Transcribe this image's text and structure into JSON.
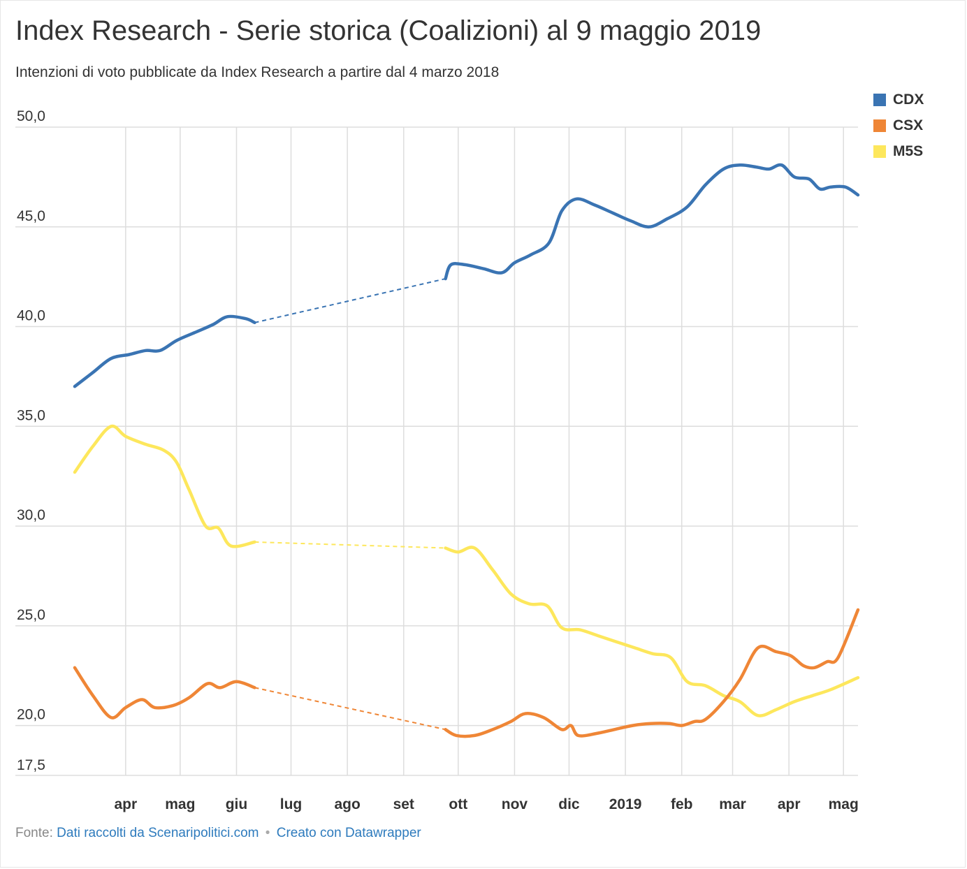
{
  "title": "Index Research - Serie storica (Coalizioni) al 9 maggio 2019",
  "subtitle": "Intenzioni di voto pubblicate da Index Research a partire dal 4 marzo 2018",
  "footer": {
    "prefix": "Fonte:",
    "source_link": "Dati raccolti da Scenaripolitici.com",
    "separator": "•",
    "made_with": "Creato con Datawrapper"
  },
  "colors": {
    "CDX": "#3a74b3",
    "CSX": "#ef8636",
    "M5S": "#fde75c",
    "grid": "#dddddd",
    "axis_text": "#333333"
  },
  "chart_data": {
    "type": "line",
    "title": "Index Research - Serie storica (Coalizioni) al 9 maggio 2019",
    "xlabel": "",
    "ylabel": "",
    "ylim": [
      17.5,
      50.0
    ],
    "y_ticks": [
      "50,0",
      "45,0",
      "40,0",
      "35,0",
      "30,0",
      "25,0",
      "20,0",
      "17,5"
    ],
    "y_tick_values": [
      50,
      45,
      40,
      35,
      30,
      25,
      20,
      17.5
    ],
    "x_range": [
      "2018-03-04",
      "2019-05-09"
    ],
    "x_ticks": [
      {
        "label": "apr",
        "date": "2018-04-01"
      },
      {
        "label": "mag",
        "date": "2018-05-01"
      },
      {
        "label": "giu",
        "date": "2018-06-01"
      },
      {
        "label": "lug",
        "date": "2018-07-01"
      },
      {
        "label": "ago",
        "date": "2018-08-01"
      },
      {
        "label": "set",
        "date": "2018-09-01"
      },
      {
        "label": "ott",
        "date": "2018-10-01"
      },
      {
        "label": "nov",
        "date": "2018-11-01"
      },
      {
        "label": "dic",
        "date": "2018-12-01"
      },
      {
        "label": "2019",
        "date": "2019-01-01"
      },
      {
        "label": "feb",
        "date": "2019-02-01"
      },
      {
        "label": "mar",
        "date": "2019-03-01"
      },
      {
        "label": "apr",
        "date": "2019-04-01"
      },
      {
        "label": "mag",
        "date": "2019-05-01"
      }
    ],
    "legend_position": "top-right",
    "grid": true,
    "gap_style": "dashed",
    "series": [
      {
        "name": "CDX",
        "segments": [
          [
            [
              "2018-03-04",
              37.0
            ],
            [
              "2018-03-14",
              37.7
            ],
            [
              "2018-03-24",
              38.4
            ],
            [
              "2018-04-03",
              38.6
            ],
            [
              "2018-04-12",
              38.8
            ],
            [
              "2018-04-20",
              38.8
            ],
            [
              "2018-04-29",
              39.3
            ],
            [
              "2018-05-09",
              39.7
            ],
            [
              "2018-05-19",
              40.1
            ],
            [
              "2018-05-27",
              40.5
            ],
            [
              "2018-06-06",
              40.4
            ],
            [
              "2018-06-11",
              40.2
            ]
          ],
          [
            [
              "2018-09-24",
              42.4
            ],
            [
              "2018-09-27",
              43.1
            ],
            [
              "2018-10-05",
              43.1
            ],
            [
              "2018-10-15",
              42.9
            ],
            [
              "2018-10-25",
              42.7
            ],
            [
              "2018-11-01",
              43.2
            ],
            [
              "2018-11-10",
              43.6
            ],
            [
              "2018-11-20",
              44.2
            ],
            [
              "2018-11-27",
              45.8
            ],
            [
              "2018-12-05",
              46.4
            ],
            [
              "2018-12-15",
              46.1
            ],
            [
              "2018-12-25",
              45.7
            ],
            [
              "2019-01-04",
              45.3
            ],
            [
              "2019-01-14",
              45.0
            ],
            [
              "2019-01-24",
              45.4
            ],
            [
              "2019-02-04",
              46.0
            ],
            [
              "2019-02-14",
              47.1
            ],
            [
              "2019-02-24",
              47.9
            ],
            [
              "2019-03-05",
              48.1
            ],
            [
              "2019-03-14",
              48.0
            ],
            [
              "2019-03-21",
              47.9
            ],
            [
              "2019-03-28",
              48.1
            ],
            [
              "2019-04-04",
              47.5
            ],
            [
              "2019-04-12",
              47.4
            ],
            [
              "2019-04-18",
              46.9
            ],
            [
              "2019-04-24",
              47.0
            ],
            [
              "2019-05-02",
              47.0
            ],
            [
              "2019-05-09",
              46.6
            ]
          ]
        ]
      },
      {
        "name": "CSX",
        "segments": [
          [
            [
              "2018-03-04",
              22.9
            ],
            [
              "2018-03-14",
              21.5
            ],
            [
              "2018-03-24",
              20.4
            ],
            [
              "2018-04-01",
              20.9
            ],
            [
              "2018-04-10",
              21.3
            ],
            [
              "2018-04-17",
              20.9
            ],
            [
              "2018-04-27",
              21.0
            ],
            [
              "2018-05-06",
              21.4
            ],
            [
              "2018-05-16",
              22.1
            ],
            [
              "2018-05-23",
              21.9
            ],
            [
              "2018-06-01",
              22.2
            ],
            [
              "2018-06-11",
              21.9
            ]
          ],
          [
            [
              "2018-09-24",
              19.8
            ],
            [
              "2018-09-30",
              19.5
            ],
            [
              "2018-10-10",
              19.5
            ],
            [
              "2018-10-20",
              19.8
            ],
            [
              "2018-10-30",
              20.2
            ],
            [
              "2018-11-07",
              20.6
            ],
            [
              "2018-11-17",
              20.4
            ],
            [
              "2018-11-27",
              19.8
            ],
            [
              "2018-12-02",
              20.0
            ],
            [
              "2018-12-06",
              19.5
            ],
            [
              "2018-12-16",
              19.6
            ],
            [
              "2018-12-26",
              19.8
            ],
            [
              "2019-01-05",
              20.0
            ],
            [
              "2019-01-15",
              20.1
            ],
            [
              "2019-01-25",
              20.1
            ],
            [
              "2019-02-01",
              20.0
            ],
            [
              "2019-02-08",
              20.2
            ],
            [
              "2019-02-14",
              20.3
            ],
            [
              "2019-02-24",
              21.2
            ],
            [
              "2019-03-05",
              22.3
            ],
            [
              "2019-03-15",
              23.9
            ],
            [
              "2019-03-25",
              23.7
            ],
            [
              "2019-04-02",
              23.5
            ],
            [
              "2019-04-09",
              23.0
            ],
            [
              "2019-04-15",
              22.9
            ],
            [
              "2019-04-22",
              23.2
            ],
            [
              "2019-04-28",
              23.4
            ],
            [
              "2019-05-09",
              25.8
            ]
          ]
        ]
      },
      {
        "name": "M5S",
        "segments": [
          [
            [
              "2018-03-04",
              32.7
            ],
            [
              "2018-03-14",
              34.0
            ],
            [
              "2018-03-24",
              35.0
            ],
            [
              "2018-04-01",
              34.5
            ],
            [
              "2018-04-12",
              34.1
            ],
            [
              "2018-04-22",
              33.8
            ],
            [
              "2018-04-29",
              33.2
            ],
            [
              "2018-05-06",
              31.8
            ],
            [
              "2018-05-15",
              30.0
            ],
            [
              "2018-05-22",
              29.9
            ],
            [
              "2018-05-29",
              29.0
            ],
            [
              "2018-06-11",
              29.2
            ]
          ],
          [
            [
              "2018-09-24",
              28.9
            ],
            [
              "2018-10-01",
              28.7
            ],
            [
              "2018-10-10",
              28.9
            ],
            [
              "2018-10-20",
              27.8
            ],
            [
              "2018-10-30",
              26.6
            ],
            [
              "2018-11-09",
              26.1
            ],
            [
              "2018-11-19",
              26.0
            ],
            [
              "2018-11-27",
              24.9
            ],
            [
              "2018-12-07",
              24.8
            ],
            [
              "2018-12-17",
              24.5
            ],
            [
              "2018-12-27",
              24.2
            ],
            [
              "2019-01-06",
              23.9
            ],
            [
              "2019-01-16",
              23.6
            ],
            [
              "2019-01-26",
              23.4
            ],
            [
              "2019-02-04",
              22.2
            ],
            [
              "2019-02-14",
              22.0
            ],
            [
              "2019-02-24",
              21.5
            ],
            [
              "2019-03-05",
              21.2
            ],
            [
              "2019-03-15",
              20.5
            ],
            [
              "2019-03-25",
              20.8
            ],
            [
              "2019-04-04",
              21.2
            ],
            [
              "2019-04-14",
              21.5
            ],
            [
              "2019-04-24",
              21.8
            ],
            [
              "2019-05-09",
              22.4
            ]
          ]
        ]
      }
    ]
  }
}
